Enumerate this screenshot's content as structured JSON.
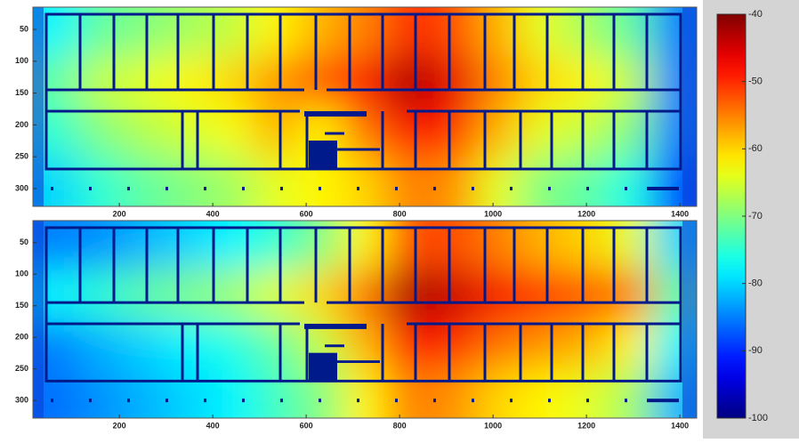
{
  "chart_data": [
    {
      "type": "heatmap",
      "x": [
        62,
        157,
        252,
        347,
        441,
        536,
        631,
        726,
        820,
        915,
        1010,
        1105,
        1199,
        1294,
        1389
      ],
      "y": [
        54,
        132,
        210,
        289
      ],
      "values": [
        [
          -78,
          -72,
          -70,
          -68,
          -66,
          -62,
          -58,
          -55,
          -50,
          -52,
          -58,
          -64,
          -68,
          -72,
          -85
        ],
        [
          -72,
          -66,
          -64,
          -62,
          -60,
          -56,
          -52,
          -48,
          -42,
          -46,
          -55,
          -60,
          -62,
          -66,
          -85
        ],
        [
          -75,
          -70,
          -67,
          -65,
          -63,
          -58,
          -62,
          -54,
          -48,
          -50,
          -58,
          -64,
          -66,
          -70,
          -85
        ],
        [
          -80,
          -75,
          -72,
          -70,
          -68,
          -64,
          -62,
          -60,
          -55,
          -56,
          -64,
          -70,
          -72,
          -76,
          -88
        ]
      ],
      "xlim": [
        15,
        1436
      ],
      "ylim": [
        15,
        328
      ],
      "xticks": [
        200,
        400,
        600,
        800,
        1000,
        1200,
        1400
      ],
      "yticks": [
        50,
        100,
        150,
        200,
        250,
        300
      ],
      "zlim": [
        -100,
        -40
      ],
      "colorbar_ticks": [
        -40,
        -50,
        -60,
        -70,
        -80,
        -90,
        -100
      ]
    },
    {
      "type": "heatmap",
      "x": [
        62,
        157,
        252,
        347,
        441,
        536,
        631,
        726,
        820,
        915,
        1010,
        1105,
        1199,
        1294,
        1389
      ],
      "y": [
        54,
        132,
        210,
        289
      ],
      "values": [
        [
          -85,
          -84,
          -82,
          -80,
          -78,
          -75,
          -70,
          -62,
          -52,
          -52,
          -55,
          -58,
          -60,
          -64,
          -80
        ],
        [
          -78,
          -75,
          -72,
          -70,
          -68,
          -64,
          -60,
          -54,
          -42,
          -44,
          -47,
          -50,
          -52,
          -54,
          -72
        ],
        [
          -85,
          -82,
          -80,
          -78,
          -76,
          -72,
          -66,
          -58,
          -48,
          -50,
          -54,
          -56,
          -58,
          -62,
          -78
        ],
        [
          -86,
          -84,
          -82,
          -80,
          -78,
          -74,
          -70,
          -62,
          -55,
          -56,
          -60,
          -62,
          -64,
          -68,
          -82
        ]
      ],
      "xlim": [
        15,
        1436
      ],
      "ylim": [
        15,
        328
      ],
      "xticks": [
        200,
        400,
        600,
        800,
        1000,
        1200,
        1400
      ],
      "yticks": [
        50,
        100,
        150,
        200,
        250,
        300
      ],
      "zlim": [
        -100,
        -40
      ]
    }
  ]
}
